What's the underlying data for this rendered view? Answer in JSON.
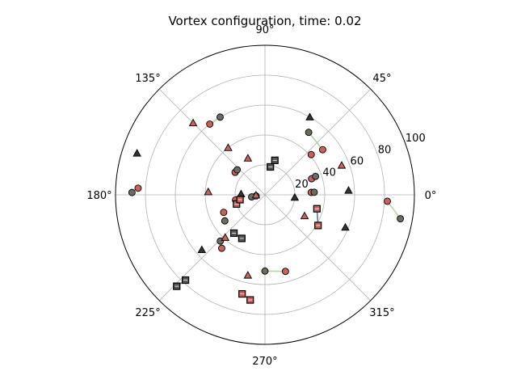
{
  "chart_data": {
    "type": "scatter",
    "projection": "polar",
    "title": "Vortex configuration, time: 0.02",
    "rlim": [
      0,
      100
    ],
    "r_ticks": [
      20,
      40,
      60,
      80,
      100
    ],
    "r_tick_labels": [
      "20",
      "40",
      "60",
      "80",
      "100"
    ],
    "theta_ticks_deg": [
      0,
      45,
      90,
      135,
      180,
      225,
      270,
      315
    ],
    "theta_tick_labels": [
      "0°",
      "45°",
      "90°",
      "135°",
      "180°",
      "225°",
      "270°",
      "315°"
    ],
    "grid": true,
    "colors": {
      "red_circle": "#c8625a",
      "gray_circle": "#6b6b60",
      "triangle": "#c8625a",
      "triangle_dark": "#333333",
      "square": "#c8625a",
      "square_dark": "#555555",
      "pair_line_green": "#b5d49a",
      "pair_line_blue": "#5a7ea6"
    },
    "red_circles": [
      {
        "theta": 38,
        "r": 49
      },
      {
        "theta": 41,
        "r": 41
      },
      {
        "theta": 19,
        "r": 33
      },
      {
        "theta": 3,
        "r": 31
      },
      {
        "theta": 357,
        "r": 82
      },
      {
        "theta": 128,
        "r": 60
      },
      {
        "theta": 143,
        "r": 25
      },
      {
        "theta": 177,
        "r": 85
      },
      {
        "theta": 190,
        "r": 20
      },
      {
        "theta": 203,
        "r": 30
      },
      {
        "theta": 231,
        "r": 46
      },
      {
        "theta": 285,
        "r": 53
      },
      {
        "theta": 187,
        "r": 6
      }
    ],
    "gray_circles": [
      {
        "theta": 55,
        "r": 51
      },
      {
        "theta": 20,
        "r": 36
      },
      {
        "theta": 3,
        "r": 33
      },
      {
        "theta": 350,
        "r": 92
      },
      {
        "theta": 120,
        "r": 60
      },
      {
        "theta": 138,
        "r": 25
      },
      {
        "theta": 179,
        "r": 89
      },
      {
        "theta": 189,
        "r": 9
      },
      {
        "theta": 213,
        "r": 32
      },
      {
        "theta": 226,
        "r": 43
      },
      {
        "theta": 270,
        "r": 51
      }
    ],
    "triangles": [
      {
        "theta": 60,
        "r": 60,
        "dark": true
      },
      {
        "theta": 21,
        "r": 55,
        "dark": false
      },
      {
        "theta": 135,
        "r": 68,
        "dark": false
      },
      {
        "theta": 128,
        "r": 40,
        "dark": false
      },
      {
        "theta": 115,
        "r": 27,
        "dark": false
      },
      {
        "theta": 162,
        "r": 90,
        "dark": true
      },
      {
        "theta": 177,
        "r": 38,
        "dark": false
      },
      {
        "theta": 178,
        "r": 16,
        "dark": true
      },
      {
        "theta": 182,
        "r": 6,
        "dark": false
      },
      {
        "theta": 332,
        "r": 30,
        "dark": false
      },
      {
        "theta": 355,
        "r": 20,
        "dark": true
      },
      {
        "theta": 3,
        "r": 56,
        "dark": true
      },
      {
        "theta": 338,
        "r": 58,
        "dark": true
      },
      {
        "theta": 221,
        "r": 56,
        "dark": true
      },
      {
        "theta": 227,
        "r": 39,
        "dark": false
      },
      {
        "theta": 258,
        "r": 55,
        "dark": false
      }
    ],
    "squares": [
      {
        "theta": 74,
        "r": 24,
        "dark": true
      },
      {
        "theta": 79,
        "r": 19,
        "dark": true
      },
      {
        "theta": 330,
        "r": 41,
        "dark": false
      },
      {
        "theta": 345,
        "r": 36,
        "dark": false
      },
      {
        "theta": 198,
        "r": 20,
        "dark": false
      },
      {
        "theta": 191,
        "r": 17,
        "dark": false
      },
      {
        "theta": 231,
        "r": 33,
        "dark": true
      },
      {
        "theta": 242,
        "r": 33,
        "dark": true
      },
      {
        "theta": 227,
        "r": 78,
        "dark": true
      },
      {
        "theta": 226,
        "r": 85,
        "dark": true
      },
      {
        "theta": 257,
        "r": 68,
        "dark": false
      },
      {
        "theta": 262,
        "r": 71,
        "dark": false
      }
    ],
    "pair_lines": [
      {
        "from": {
          "theta": 55,
          "r": 51
        },
        "to": {
          "theta": 38,
          "r": 49
        },
        "color": "green"
      },
      {
        "from": {
          "theta": 350,
          "r": 92
        },
        "to": {
          "theta": 357,
          "r": 82
        },
        "color": "green"
      },
      {
        "from": {
          "theta": 120,
          "r": 60
        },
        "to": {
          "theta": 128,
          "r": 60
        },
        "color": "green"
      },
      {
        "from": {
          "theta": 226,
          "r": 43
        },
        "to": {
          "theta": 231,
          "r": 46
        },
        "color": "green"
      },
      {
        "from": {
          "theta": 270,
          "r": 51
        },
        "to": {
          "theta": 285,
          "r": 53
        },
        "color": "green"
      },
      {
        "from": {
          "theta": 74,
          "r": 24
        },
        "to": {
          "theta": 79,
          "r": 19
        },
        "color": "blue"
      },
      {
        "from": {
          "theta": 330,
          "r": 41
        },
        "to": {
          "theta": 345,
          "r": 36
        },
        "color": "blue"
      },
      {
        "from": {
          "theta": 231,
          "r": 33
        },
        "to": {
          "theta": 242,
          "r": 33
        },
        "color": "blue"
      },
      {
        "from": {
          "theta": 227,
          "r": 78
        },
        "to": {
          "theta": 226,
          "r": 85
        },
        "color": "blue"
      },
      {
        "from": {
          "theta": 257,
          "r": 68
        },
        "to": {
          "theta": 262,
          "r": 71
        },
        "color": "blue"
      },
      {
        "from": {
          "theta": 198,
          "r": 20
        },
        "to": {
          "theta": 191,
          "r": 17
        },
        "color": "blue"
      }
    ]
  }
}
